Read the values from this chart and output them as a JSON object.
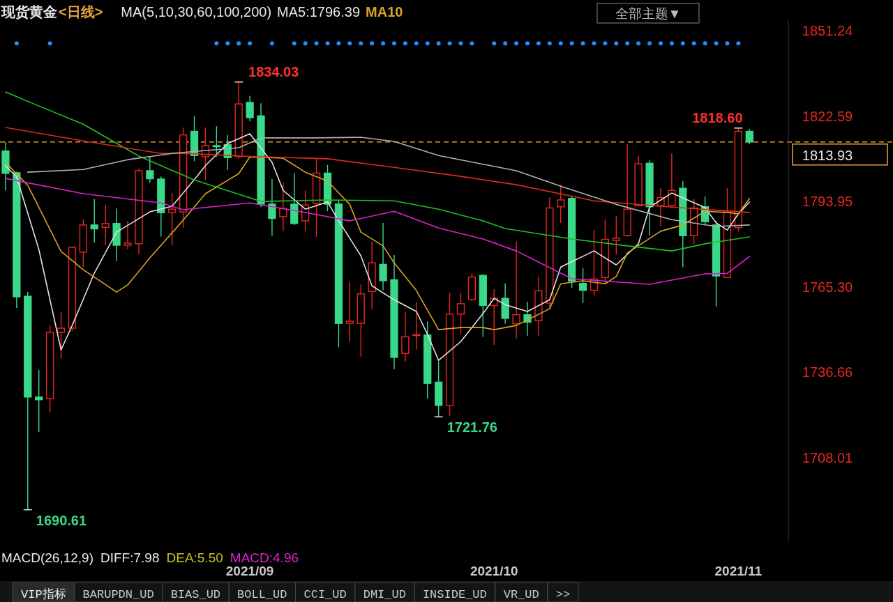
{
  "chart_data": {
    "type": "candlestick",
    "title": "现货黄金",
    "subtitle": "<日线>",
    "categories": [
      null,
      null,
      null,
      null,
      null,
      null,
      null,
      null,
      null,
      null,
      null,
      null,
      null,
      null,
      null,
      null,
      null,
      null,
      null,
      null,
      null,
      null,
      "2021/09",
      null,
      null,
      null,
      null,
      null,
      null,
      null,
      null,
      null,
      null,
      null,
      null,
      null,
      null,
      null,
      null,
      null,
      null,
      null,
      null,
      null,
      "2021/10",
      null,
      null,
      null,
      null,
      null,
      null,
      null,
      null,
      null,
      null,
      null,
      null,
      null,
      null,
      null,
      null,
      null,
      null,
      null,
      null,
      null,
      "2021/11",
      null
    ],
    "ohlc": [
      [
        1810.9,
        1813.9,
        1797.7,
        1803.4
      ],
      [
        1803.6,
        1804.0,
        1758.3,
        1762.0
      ],
      [
        1762.2,
        1763.7,
        1690.61,
        1728.4
      ],
      [
        1728.4,
        1737.5,
        1716.7,
        1727.5
      ],
      [
        1727.9,
        1752.5,
        1723.3,
        1750.1
      ],
      [
        1750.1,
        1756.9,
        1741.3,
        1751.5
      ],
      [
        1751.5,
        1779.0,
        1750.5,
        1778.6
      ],
      [
        1777.0,
        1788.0,
        1772.0,
        1786.1
      ],
      [
        1786.1,
        1794.8,
        1780.2,
        1784.8
      ],
      [
        1785.3,
        1792.9,
        1779.3,
        1786.6
      ],
      [
        1786.6,
        1791.6,
        1773.9,
        1779.3
      ],
      [
        1779.3,
        1787.5,
        1777.9,
        1780.0
      ],
      [
        1779.8,
        1805.0,
        1776.3,
        1804.3
      ],
      [
        1804.3,
        1809.0,
        1800.2,
        1801.6
      ],
      [
        1801.5,
        1802.4,
        1782.2,
        1790.2
      ],
      [
        1790.3,
        1796.8,
        1779.3,
        1791.4
      ],
      [
        1790.5,
        1818.8,
        1785.1,
        1816.3
      ],
      [
        1817.5,
        1822.6,
        1807.5,
        1809.4
      ],
      [
        1809.0,
        1818.8,
        1801.2,
        1812.7
      ],
      [
        1812.7,
        1819.2,
        1809.0,
        1812.5
      ],
      [
        1813.0,
        1816.3,
        1804.6,
        1808.7
      ],
      [
        1809.0,
        1834.03,
        1808.3,
        1826.7
      ],
      [
        1827.2,
        1829.4,
        1820.9,
        1822.1
      ],
      [
        1822.7,
        1826.9,
        1792.1,
        1793.1
      ],
      [
        1793.1,
        1801.5,
        1782.5,
        1788.3
      ],
      [
        1788.9,
        1800.4,
        1784.0,
        1791.6
      ],
      [
        1793.1,
        1803.5,
        1786.1,
        1786.6
      ],
      [
        1787.5,
        1797.7,
        1784.0,
        1792.8
      ],
      [
        1793.4,
        1808.2,
        1782.1,
        1803.5
      ],
      [
        1803.5,
        1806.2,
        1790.7,
        1793.1
      ],
      [
        1793.1,
        1794.5,
        1745.1,
        1753.1
      ],
      [
        1753.1,
        1766.9,
        1747.0,
        1753.8
      ],
      [
        1753.1,
        1766.1,
        1742.0,
        1763.0
      ],
      [
        1763.8,
        1780.5,
        1757.9,
        1773.4
      ],
      [
        1772.9,
        1786.8,
        1764.2,
        1767.4
      ],
      [
        1767.7,
        1776.0,
        1737.7,
        1741.7
      ],
      [
        1743.0,
        1757.1,
        1740.2,
        1748.6
      ],
      [
        1749.0,
        1760.3,
        1744.3,
        1749.4
      ],
      [
        1749.2,
        1753.7,
        1727.9,
        1733.0
      ],
      [
        1733.4,
        1740.4,
        1721.76,
        1725.6
      ],
      [
        1725.6,
        1763.4,
        1722.1,
        1756.2
      ],
      [
        1756.2,
        1763.4,
        1749.4,
        1759.7
      ],
      [
        1761.1,
        1769.8,
        1760.5,
        1768.6
      ],
      [
        1769.2,
        1769.6,
        1748.6,
        1759.1
      ],
      [
        1759.1,
        1764.6,
        1745.9,
        1761.5
      ],
      [
        1761.5,
        1766.5,
        1753.0,
        1754.8
      ],
      [
        1753.0,
        1780.5,
        1748.0,
        1756.0
      ],
      [
        1756.0,
        1760.4,
        1749.0,
        1753.5
      ],
      [
        1754.0,
        1768.8,
        1749.0,
        1764.0
      ],
      [
        1759.9,
        1795.3,
        1757.9,
        1791.8
      ],
      [
        1792.2,
        1799.6,
        1786.8,
        1794.5
      ],
      [
        1795.0,
        1795.7,
        1765.0,
        1767.3
      ],
      [
        1766.5,
        1771.6,
        1759.9,
        1764.2
      ],
      [
        1764.2,
        1784.4,
        1762.6,
        1768.0
      ],
      [
        1768.5,
        1787.9,
        1766.5,
        1781.3
      ],
      [
        1780.9,
        1789.1,
        1776.2,
        1781.7
      ],
      [
        1782.5,
        1813.2,
        1782.2,
        1791.4
      ],
      [
        1792.6,
        1809.3,
        1792.2,
        1806.6
      ],
      [
        1806.8,
        1807.8,
        1782.5,
        1792.2
      ],
      [
        1792.6,
        1798.4,
        1785.6,
        1795.3
      ],
      [
        1792.6,
        1810.1,
        1792.2,
        1797.7
      ],
      [
        1798.4,
        1800.8,
        1772.0,
        1782.5
      ],
      [
        1782.5,
        1794.9,
        1779.8,
        1791.8
      ],
      [
        1792.2,
        1795.7,
        1786.0,
        1787.2
      ],
      [
        1786.1,
        1787.5,
        1758.7,
        1769.0
      ],
      [
        1768.5,
        1798.4,
        1768.5,
        1790.8
      ],
      [
        1785.2,
        1818.6,
        1784.0,
        1817.5
      ],
      [
        1817.5,
        1818.3,
        1813.2,
        1813.93
      ]
    ],
    "colors": [
      "#3ad98a",
      "#3ad98a",
      "#3ad98a",
      "#3ad98a",
      "#e8271f",
      "#e8271f",
      "#e8271f",
      "#e8271f",
      "#3ad98a",
      "#e8271f",
      "#3ad98a",
      "#e8271f",
      "#e8271f",
      "#3ad98a",
      "#3ad98a",
      "#e8271f",
      "#e8271f",
      "#3ad98a",
      "#e8271f",
      "#3ad98a",
      "#3ad98a",
      "#e8271f",
      "#3ad98a",
      "#3ad98a",
      "#3ad98a",
      "#e8271f",
      "#3ad98a",
      "#e8271f",
      "#e8271f",
      "#3ad98a",
      "#3ad98a",
      "#e8271f",
      "#e8271f",
      "#e8271f",
      "#3ad98a",
      "#3ad98a",
      "#e8271f",
      "#e8271f",
      "#3ad98a",
      "#3ad98a",
      "#e8271f",
      "#e8271f",
      "#e8271f",
      "#3ad98a",
      "#e8271f",
      "#3ad98a",
      "#e8271f",
      "#3ad98a",
      "#e8271f",
      "#e8271f",
      "#e8271f",
      "#3ad98a",
      "#3ad98a",
      "#e8271f",
      "#e8271f",
      "#e8271f",
      "#e8271f",
      "#e8271f",
      "#3ad98a",
      "#e8271f",
      "#e8271f",
      "#3ad98a",
      "#e8271f",
      "#3ad98a",
      "#3ad98a",
      "#e8271f",
      "#e8271f",
      "#3ad98a"
    ],
    "series": [
      {
        "type": "line",
        "color": "#e6e0e0",
        "values": [
          1806.0,
          1802.2,
          null,
          1777.9,
          null,
          1744.2,
          1752.4,
          null,
          1770.0,
          null,
          1783.7,
          null,
          null,
          1790.5,
          null,
          1792.4,
          null,
          1801.3,
          1806.0,
          null,
          1813.4,
          null,
          1816.7,
          null,
          1807.1,
          1797.7,
          null,
          1791.4,
          null,
          1793.8,
          1787.5,
          null,
          1775.8,
          1765.7,
          null,
          1761.0,
          null,
          1757.1,
          1749.4,
          1740.7,
          null,
          1747.0,
          null,
          1756.4,
          1761.5,
          1759.4,
          null,
          1757.1,
          null,
          1761.0,
          1772.0,
          null,
          null,
          1777.4,
          null,
          1772.7,
          null,
          1779.8,
          1792.1,
          null,
          1796.8,
          null,
          null,
          1791.9,
          1786.8,
          1784.4,
          1789.8,
          1793.8
        ]
      },
      {
        "type": "line",
        "color": "#d9a520",
        "values": [
          1807.1,
          null,
          1799.4,
          null,
          null,
          1777.2,
          null,
          1771.1,
          null,
          null,
          1763.6,
          1766.0,
          null,
          1775.1,
          null,
          null,
          1787.7,
          null,
          1796.6,
          null,
          null,
          1803.3,
          1808.9,
          null,
          null,
          1808.5,
          null,
          1803.8,
          null,
          1800.8,
          null,
          1793.0,
          1783.7,
          null,
          1779.1,
          1773.4,
          null,
          1764.1,
          null,
          1751.0,
          null,
          1751.7,
          null,
          1751.7,
          1751.0,
          null,
          1752.4,
          null,
          null,
          1758.0,
          1766.4,
          null,
          1767.4,
          null,
          1766.4,
          1768.8,
          1776.7,
          null,
          null,
          1784.0,
          null,
          1786.1,
          null,
          1790.7,
          null,
          1790.3,
          1789.8,
          1795.0
        ]
      },
      {
        "type": "line",
        "color": "#22c022",
        "values": [
          1830.7,
          null,
          null,
          1826.0,
          null,
          null,
          null,
          1819.9,
          null,
          null,
          null,
          null,
          1809.2,
          null,
          null,
          null,
          null,
          1801.2,
          null,
          null,
          null,
          null,
          null,
          1794.0,
          null,
          null,
          null,
          null,
          null,
          1794.5,
          null,
          null,
          null,
          null,
          null,
          1794.2,
          null,
          null,
          null,
          1791.4,
          null,
          null,
          null,
          1787.5,
          null,
          1784.9,
          null,
          null,
          null,
          null,
          null,
          1781.4,
          null,
          null,
          null,
          null,
          1779.1,
          null,
          null,
          null,
          1777.4,
          null,
          null,
          1779.8,
          null,
          null,
          null,
          1782.1
        ]
      },
      {
        "type": "line",
        "color": "#e020d0",
        "values": [
          1801.7,
          null,
          null,
          null,
          null,
          null,
          null,
          1796.6,
          null,
          null,
          null,
          null,
          null,
          null,
          1793.5,
          null,
          1791.2,
          null,
          null,
          null,
          null,
          null,
          1793.5,
          null,
          null,
          null,
          null,
          1790.3,
          null,
          null,
          null,
          1787.5,
          null,
          null,
          null,
          1790.7,
          null,
          null,
          null,
          1785.1,
          null,
          null,
          null,
          1781.4,
          null,
          null,
          1777.4,
          null,
          null,
          null,
          null,
          1768.1,
          null,
          null,
          null,
          null,
          null,
          null,
          1766.2,
          null,
          null,
          null,
          null,
          1769.7,
          null,
          1769.9,
          null,
          1775.5
        ]
      },
      {
        "type": "line",
        "color": "#e02a1a",
        "values": [
          1818.8,
          null,
          null,
          null,
          null,
          null,
          null,
          1814.3,
          null,
          null,
          null,
          null,
          null,
          null,
          1810.1,
          null,
          1810.1,
          null,
          null,
          null,
          null,
          null,
          1809.1,
          null,
          null,
          null,
          null,
          null,
          null,
          1808.3,
          null,
          null,
          null,
          null,
          null,
          1805.4,
          null,
          null,
          null,
          null,
          null,
          1802.4,
          null,
          null,
          null,
          null,
          1799.6,
          null,
          null,
          null,
          null,
          null,
          null,
          1794.2,
          null,
          null,
          null,
          null,
          null,
          null,
          1792.1,
          null,
          null,
          null,
          null,
          null,
          null,
          1790.3
        ]
      },
      {
        "type": "line",
        "color": "#b0b0b0",
        "values": [
          null,
          null,
          1803.8,
          null,
          null,
          null,
          null,
          1804.7,
          null,
          null,
          null,
          1808.0,
          null,
          null,
          null,
          1810.1,
          null,
          null,
          null,
          null,
          null,
          1812.0,
          null,
          1815.3,
          null,
          null,
          null,
          null,
          1815.3,
          null,
          null,
          null,
          1815.5,
          null,
          null,
          1814.1,
          null,
          null,
          null,
          1809.4,
          null,
          null,
          null,
          null,
          null,
          null,
          1804.3,
          null,
          null,
          null,
          1799.1,
          null,
          null,
          null,
          null,
          1793.0,
          null,
          null,
          null,
          null,
          1787.9,
          null,
          null,
          null,
          1785.6,
          null,
          null,
          1786.1
        ]
      },
      {
        "type": "scatter",
        "color": "#1e8fff",
        "values": [
          null,
          1847.0,
          null,
          null,
          1847.0,
          null,
          null,
          null,
          null,
          null,
          null,
          null,
          null,
          null,
          null,
          null,
          null,
          null,
          null,
          1847.0,
          1847.0,
          1847.0,
          1847.0,
          null,
          1847.0,
          null,
          1847.0,
          1847.0,
          1847.0,
          1847.0,
          1847.0,
          1847.0,
          1847.0,
          1847.0,
          1847.0,
          1847.0,
          1847.0,
          1847.0,
          1847.0,
          1847.0,
          1847.0,
          1847.0,
          1847.0,
          null,
          1847.0,
          1847.0,
          1847.0,
          1847.0,
          1847.0,
          1847.0,
          1847.0,
          1847.0,
          1847.0,
          1847.0,
          1847.0,
          1847.0,
          1847.0,
          1847.0,
          1847.0,
          1847.0,
          1847.0,
          1847.0,
          1847.0,
          1847.0,
          1847.0,
          1847.0,
          1847.0,
          null
        ]
      }
    ],
    "ylim": [
      1680,
      1855
    ],
    "yticks": [
      1851.24,
      1822.59,
      1793.95,
      {
        "value": 1765.3,
        "label": "1765.30"
      },
      1736.66,
      1708.01
    ],
    "ref_lines": [
      {
        "axis": "y",
        "value": 1813.93,
        "label": "1813.93",
        "color": "#e8a33a",
        "line_style": "dashed"
      }
    ],
    "annotations": [
      "MA(5,10,30,60,100,200)",
      "MA5:1796.39",
      "MA10",
      "全部主题▼",
      "MACD(26,12,9)",
      "DIFF:7.98",
      "DEA:5.50",
      "MACD:4.96",
      "VIP指标",
      "BARUPDN_UD",
      "BIAS_UD",
      "BOLL_UD",
      "CCI_UD",
      "DMI_UD",
      "INSIDE_UD",
      "VR_UD",
      ">>",
      "1834.03",
      "1818.60",
      "1721.76",
      "1690.61"
    ]
  }
}
